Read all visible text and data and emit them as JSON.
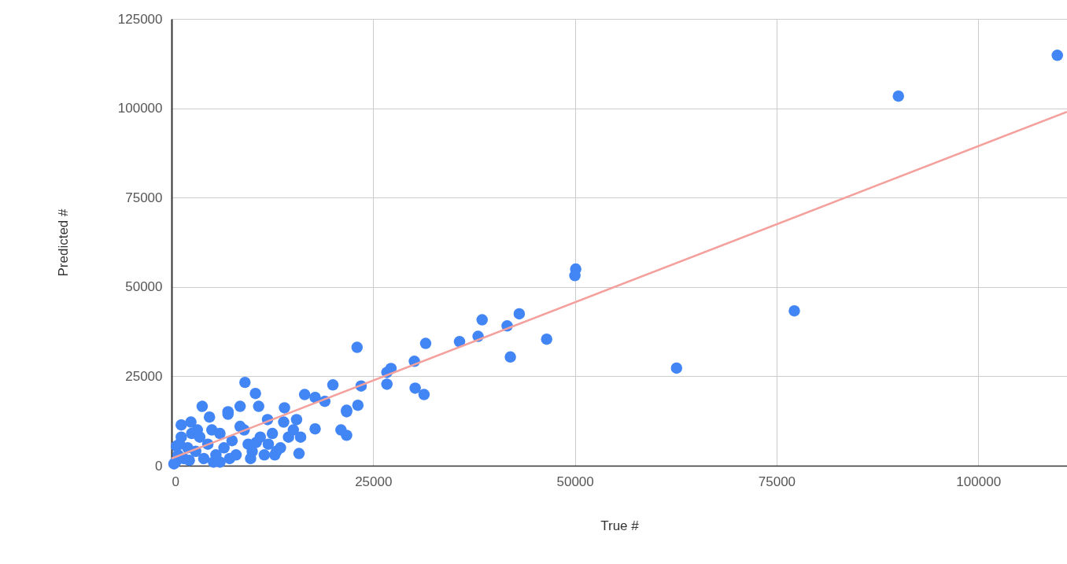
{
  "chart_data": {
    "type": "scatter",
    "xlabel": "True #",
    "ylabel": "Predicted #",
    "xlim": [
      0,
      111000
    ],
    "ylim": [
      0,
      125000
    ],
    "xticks": [
      0,
      25000,
      50000,
      75000,
      100000
    ],
    "yticks": [
      0,
      25000,
      50000,
      75000,
      100000,
      125000
    ],
    "grid": true,
    "series": [
      {
        "color": "#4285f4",
        "marker": "circle",
        "x": [
          109800,
          90100,
          77200,
          62600,
          50100,
          50000,
          43100,
          38500,
          41600,
          38000,
          35700,
          46500,
          42000,
          31500,
          30100,
          30200,
          31300,
          27200,
          26700,
          26700,
          23000,
          23500,
          23100,
          21700,
          20000,
          9100,
          3800,
          10400,
          10800,
          7000,
          8500,
          16500,
          17800,
          19000,
          14000,
          21700,
          21000,
          21700,
          17800,
          15800,
          1200,
          2400,
          4700,
          7000,
          11900,
          13900,
          15500,
          15100,
          500,
          800,
          1500,
          2000,
          3000,
          3500,
          4500,
          5500,
          6000,
          6500,
          7500,
          8000,
          9000,
          9500,
          10000,
          11000,
          12000,
          12500,
          13000,
          14500,
          1000,
          2500,
          4000,
          5000,
          6000,
          8500,
          9800,
          11500,
          13500,
          300,
          600,
          1200,
          2200,
          3200,
          5200,
          7200,
          10500,
          12800,
          16000
        ],
        "values": [
          114800,
          103400,
          43300,
          27300,
          55000,
          53200,
          42500,
          40800,
          39100,
          36200,
          34700,
          35400,
          30400,
          34200,
          29200,
          21700,
          19900,
          27200,
          26100,
          22800,
          33100,
          22300,
          16900,
          15500,
          22600,
          23300,
          16600,
          20200,
          16600,
          15100,
          16600,
          19900,
          19100,
          18000,
          16200,
          15100,
          10000,
          8500,
          10300,
          3400,
          11400,
          12200,
          13600,
          14400,
          12900,
          12200,
          12900,
          10000,
          1000,
          3000,
          2000,
          5000,
          4000,
          8000,
          6000,
          3000,
          9000,
          5000,
          7000,
          3000,
          10000,
          6000,
          4000,
          8000,
          6000,
          9000,
          4000,
          8000,
          6000,
          9000,
          2000,
          10000,
          1000,
          11000,
          2000,
          3000,
          5000,
          500,
          5500,
          8000,
          1500,
          10000,
          1000,
          2000,
          6500,
          3000,
          8000
        ]
      },
      {
        "type": "line",
        "color": "#f4a09c",
        "x": [
          0,
          111000
        ],
        "values": [
          2000,
          99000
        ]
      }
    ]
  }
}
